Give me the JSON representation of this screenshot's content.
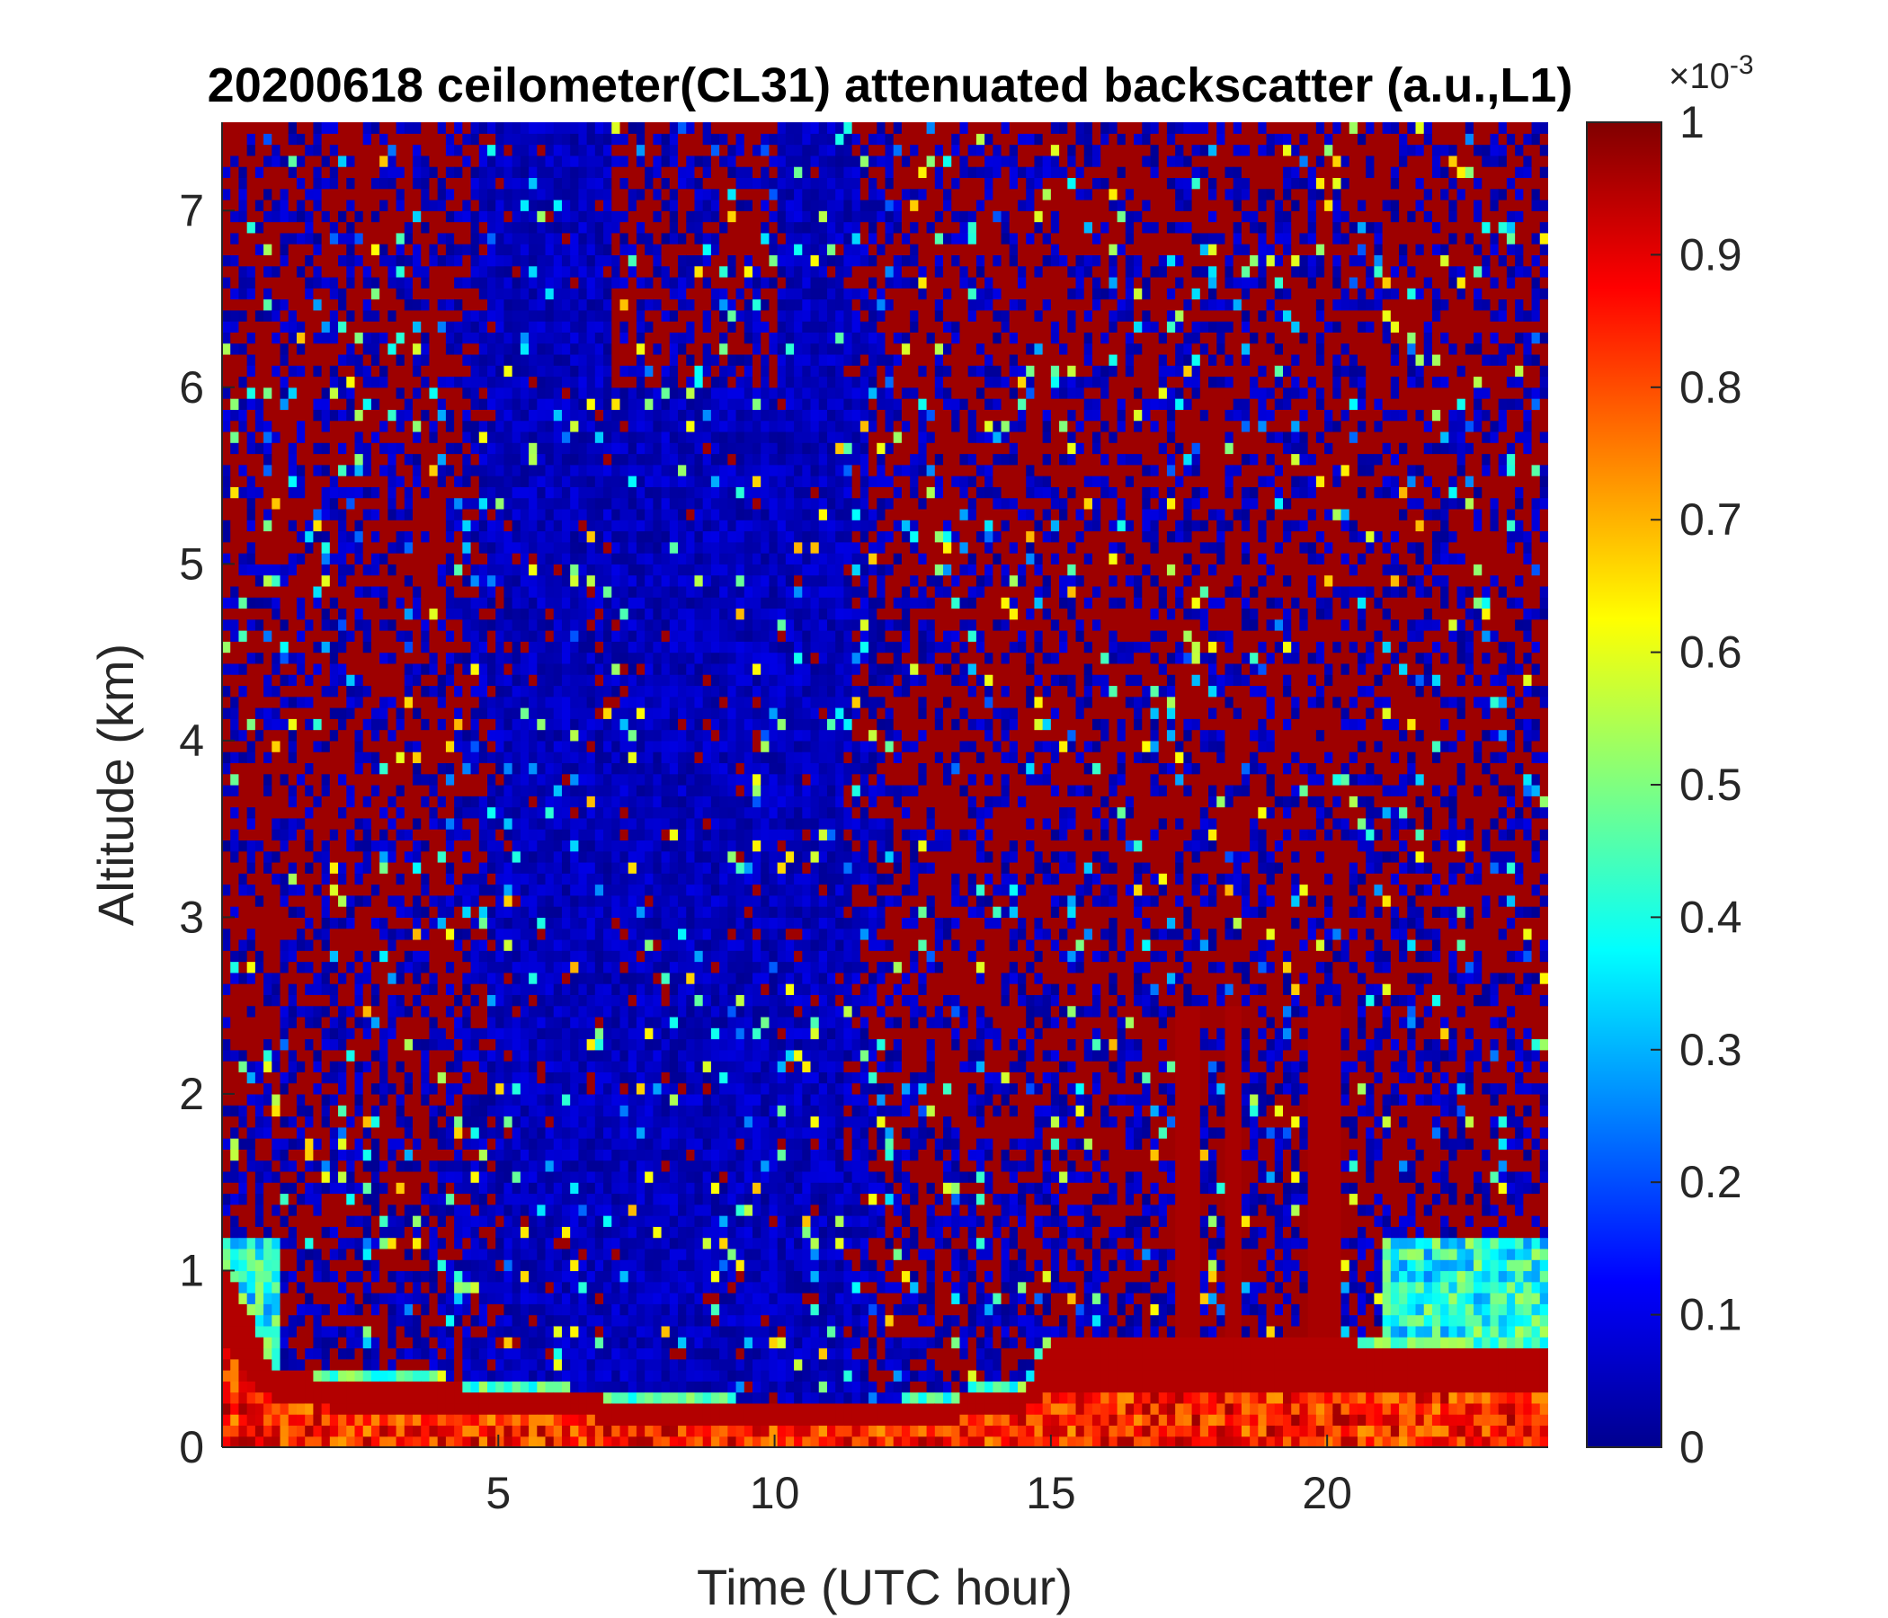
{
  "chart_data": {
    "type": "heatmap",
    "title": "20200618 ceilometer(CL31) attenuated backscatter (a.u.,L1)",
    "xlabel": "Time (UTC hour)",
    "ylabel": "Altitude (km)",
    "xlim": [
      0,
      24
    ],
    "ylim": [
      0,
      7.5
    ],
    "x_ticks": [
      5,
      10,
      15,
      20
    ],
    "y_ticks": [
      0,
      1,
      2,
      3,
      4,
      5,
      6,
      7
    ],
    "colorbar": {
      "label": "",
      "exponent_label": "×10",
      "exponent_power": "-3",
      "clim": [
        0,
        1
      ],
      "ticks": [
        "0",
        "0.1",
        "0.2",
        "0.3",
        "0.4",
        "0.5",
        "0.6",
        "0.7",
        "0.8",
        "0.9",
        "1"
      ],
      "colormap": "jet"
    },
    "features": {
      "boundary_layer_top_km": [
        {
          "t": 0,
          "z": 1.05
        },
        {
          "t": 1,
          "z": 0.42
        },
        {
          "t": 5,
          "z": 0.33
        },
        {
          "t": 8,
          "z": 0.25
        },
        {
          "t": 10,
          "z": 0.22
        },
        {
          "t": 12,
          "z": 0.22
        },
        {
          "t": 14.5,
          "z": 0.34
        },
        {
          "t": 15,
          "z": 0.6
        },
        {
          "t": 17,
          "z": 0.6
        },
        {
          "t": 20,
          "z": 0.6
        },
        {
          "t": 22,
          "z": 0.58
        },
        {
          "t": 24,
          "z": 0.55
        }
      ],
      "clear_column_hours": [
        4,
        12.3
      ],
      "vertical_streak_hours": [
        9.1,
        17.5,
        18.3,
        19.9,
        20.1
      ]
    }
  }
}
